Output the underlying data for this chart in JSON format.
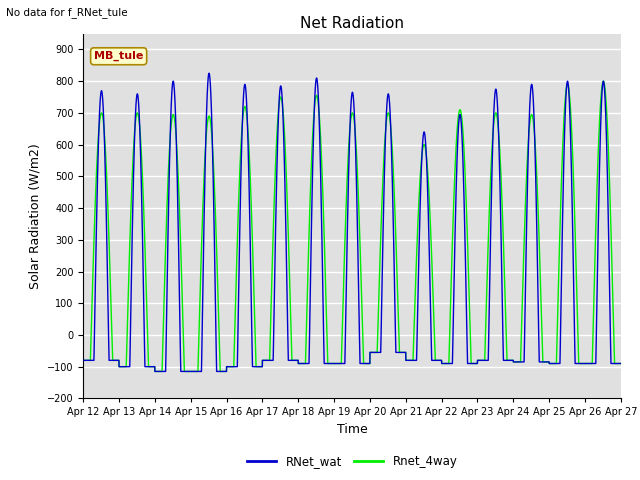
{
  "title": "Net Radiation",
  "top_left_text": "No data for f_RNet_tule",
  "ylabel": "Solar Radiation (W/m2)",
  "xlabel": "Time",
  "ylim": [
    -200,
    950
  ],
  "yticks": [
    -200,
    -100,
    0,
    100,
    200,
    300,
    400,
    500,
    600,
    700,
    800,
    900
  ],
  "xtick_labels": [
    "Apr 12",
    "Apr 13",
    "Apr 14",
    "Apr 15",
    "Apr 16",
    "Apr 17",
    "Apr 18",
    "Apr 19",
    "Apr 20",
    "Apr 21",
    "Apr 22",
    "Apr 23",
    "Apr 24",
    "Apr 25",
    "Apr 26",
    "Apr 27"
  ],
  "line1_color": "#0000cc",
  "line2_color": "#00ee00",
  "legend_label1": "RNet_wat",
  "legend_label2": "Rnet_4way",
  "annotation_text": "MB_tule",
  "annotation_color": "#aa0000",
  "annotation_bg": "#ffffcc",
  "annotation_border": "#aa8800",
  "background_color": "#e0e0e0",
  "grid_color": "#ffffff",
  "title_fontsize": 11,
  "axis_fontsize": 9,
  "tick_fontsize": 7,
  "n_days": 15,
  "day_peaks_wat": [
    770,
    760,
    800,
    825,
    790,
    785,
    810,
    765,
    760,
    640,
    695,
    775,
    790,
    800,
    800
  ],
  "day_peaks_4way": [
    700,
    700,
    695,
    690,
    720,
    750,
    755,
    700,
    700,
    600,
    710,
    700,
    695,
    790,
    800
  ],
  "night_vals_wat": [
    -80,
    -100,
    -115,
    -115,
    -100,
    -80,
    -90,
    -90,
    -55,
    -80,
    -90,
    -80,
    -85,
    -90,
    -90
  ],
  "night_vals_4way": [
    -80,
    -100,
    -115,
    -115,
    -100,
    -80,
    -90,
    -90,
    -55,
    -80,
    -90,
    -80,
    -85,
    -90,
    -90
  ],
  "pts_per_day": 288
}
